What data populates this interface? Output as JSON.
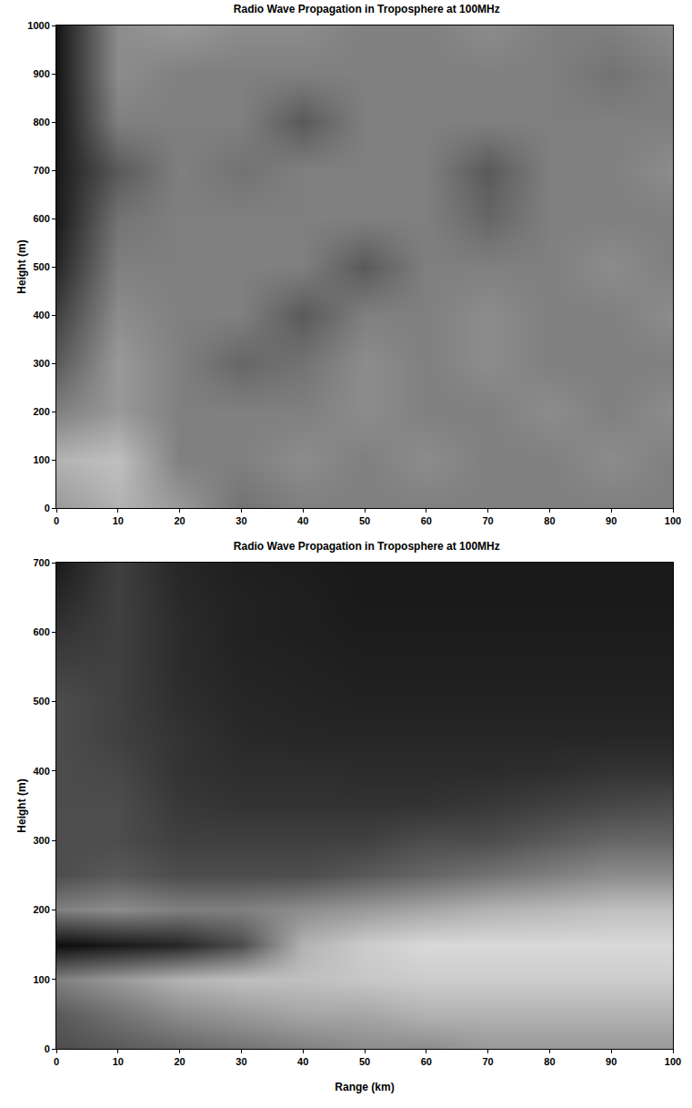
{
  "chart_data": [
    {
      "type": "heatmap",
      "title": "Radio Wave Propagation in Troposphere at 100MHz",
      "ylabel": "Height (m)",
      "color": "gray",
      "x": [
        0,
        10,
        20,
        30,
        40,
        50,
        60,
        70,
        80,
        90,
        100
      ],
      "y": [
        0,
        100,
        200,
        300,
        400,
        500,
        600,
        700,
        800,
        900,
        1000
      ],
      "z": [
        [
          0.6,
          0.7,
          0.6,
          0.45,
          0.5,
          0.5,
          0.5,
          0.5,
          0.5,
          0.5,
          0.5
        ],
        [
          0.7,
          0.75,
          0.5,
          0.5,
          0.55,
          0.5,
          0.55,
          0.5,
          0.5,
          0.55,
          0.5
        ],
        [
          0.5,
          0.6,
          0.5,
          0.5,
          0.5,
          0.55,
          0.5,
          0.5,
          0.55,
          0.5,
          0.55
        ],
        [
          0.35,
          0.6,
          0.5,
          0.4,
          0.45,
          0.55,
          0.5,
          0.55,
          0.5,
          0.5,
          0.5
        ],
        [
          0.25,
          0.55,
          0.5,
          0.5,
          0.35,
          0.5,
          0.5,
          0.55,
          0.5,
          0.5,
          0.55
        ],
        [
          0.15,
          0.5,
          0.5,
          0.5,
          0.5,
          0.35,
          0.5,
          0.5,
          0.5,
          0.55,
          0.5
        ],
        [
          0.1,
          0.45,
          0.5,
          0.5,
          0.5,
          0.5,
          0.5,
          0.4,
          0.5,
          0.5,
          0.5
        ],
        [
          0.1,
          0.35,
          0.5,
          0.45,
          0.5,
          0.5,
          0.5,
          0.35,
          0.5,
          0.5,
          0.55
        ],
        [
          0.08,
          0.5,
          0.5,
          0.5,
          0.35,
          0.5,
          0.5,
          0.5,
          0.5,
          0.5,
          0.5
        ],
        [
          0.08,
          0.55,
          0.5,
          0.5,
          0.5,
          0.5,
          0.5,
          0.5,
          0.5,
          0.45,
          0.5
        ],
        [
          0.08,
          0.55,
          0.6,
          0.55,
          0.55,
          0.5,
          0.5,
          0.55,
          0.5,
          0.5,
          0.55
        ]
      ],
      "zlim": [
        0,
        1
      ],
      "xlim": [
        0,
        100
      ],
      "xticks": [
        0,
        10,
        20,
        30,
        40,
        50,
        60,
        70,
        80,
        90,
        100
      ],
      "ylim": [
        0,
        1000
      ],
      "yticks": [
        0,
        100,
        200,
        300,
        400,
        500,
        600,
        700,
        800,
        900,
        1000
      ]
    },
    {
      "type": "heatmap",
      "title": "Radio Wave Propagation in Troposphere at 100MHz",
      "xlabel": "Range (km)",
      "ylabel": "Height (m)",
      "color": "gray",
      "x": [
        0,
        10,
        20,
        30,
        40,
        50,
        60,
        70,
        80,
        90,
        100
      ],
      "y": [
        0,
        50,
        100,
        150,
        200,
        250,
        300,
        350,
        400,
        450,
        500,
        550,
        600,
        650,
        700
      ],
      "z": [
        [
          0.3,
          0.35,
          0.4,
          0.45,
          0.5,
          0.55,
          0.55,
          0.6,
          0.6,
          0.6,
          0.6
        ],
        [
          0.35,
          0.45,
          0.55,
          0.6,
          0.65,
          0.65,
          0.7,
          0.7,
          0.7,
          0.7,
          0.7
        ],
        [
          0.5,
          0.6,
          0.7,
          0.75,
          0.75,
          0.78,
          0.8,
          0.8,
          0.8,
          0.8,
          0.8
        ],
        [
          0.05,
          0.1,
          0.15,
          0.3,
          0.7,
          0.8,
          0.85,
          0.85,
          0.85,
          0.85,
          0.85
        ],
        [
          0.5,
          0.55,
          0.5,
          0.5,
          0.55,
          0.6,
          0.65,
          0.7,
          0.72,
          0.75,
          0.75
        ],
        [
          0.3,
          0.35,
          0.3,
          0.3,
          0.3,
          0.35,
          0.4,
          0.45,
          0.5,
          0.55,
          0.55
        ],
        [
          0.3,
          0.3,
          0.25,
          0.25,
          0.25,
          0.25,
          0.3,
          0.3,
          0.35,
          0.4,
          0.4
        ],
        [
          0.3,
          0.3,
          0.22,
          0.2,
          0.2,
          0.2,
          0.2,
          0.22,
          0.25,
          0.28,
          0.3
        ],
        [
          0.3,
          0.28,
          0.2,
          0.18,
          0.18,
          0.17,
          0.17,
          0.17,
          0.18,
          0.2,
          0.2
        ],
        [
          0.3,
          0.25,
          0.2,
          0.16,
          0.15,
          0.15,
          0.15,
          0.15,
          0.15,
          0.15,
          0.15
        ],
        [
          0.3,
          0.25,
          0.18,
          0.15,
          0.14,
          0.13,
          0.13,
          0.13,
          0.13,
          0.13,
          0.13
        ],
        [
          0.25,
          0.25,
          0.17,
          0.14,
          0.13,
          0.12,
          0.12,
          0.12,
          0.12,
          0.12,
          0.12
        ],
        [
          0.2,
          0.25,
          0.17,
          0.13,
          0.12,
          0.11,
          0.11,
          0.11,
          0.11,
          0.11,
          0.11
        ],
        [
          0.15,
          0.25,
          0.16,
          0.13,
          0.12,
          0.1,
          0.1,
          0.1,
          0.1,
          0.1,
          0.1
        ],
        [
          0.1,
          0.25,
          0.15,
          0.12,
          0.11,
          0.1,
          0.1,
          0.1,
          0.1,
          0.1,
          0.1
        ]
      ],
      "zlim": [
        0,
        1
      ],
      "xlim": [
        0,
        100
      ],
      "xticks": [
        0,
        10,
        20,
        30,
        40,
        50,
        60,
        70,
        80,
        90,
        100
      ],
      "ylim": [
        0,
        700
      ],
      "yticks": [
        0,
        100,
        200,
        300,
        400,
        500,
        600,
        700
      ]
    }
  ]
}
